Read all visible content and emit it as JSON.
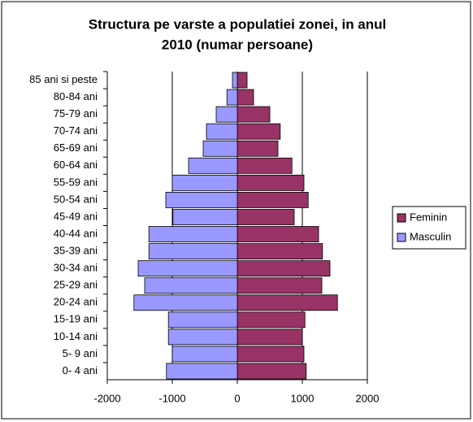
{
  "chart_data": {
    "type": "bar",
    "orientation": "horizontal",
    "stacked": "diverging",
    "title": [
      "Structura pe varste a populatiei zonei,  in anul",
      "2010 (numar persoane)"
    ],
    "categories": [
      "85 ani si peste",
      "80-84 ani",
      "75-79 ani",
      "70-74 ani",
      "65-69 ani",
      "60-64 ani",
      "55-59 ani",
      "50-54 ani",
      "45-49 ani",
      "40-44 ani",
      "35-39 ani",
      "30-34 ani",
      "25-29 ani",
      "20-24 ani",
      "15-19 ani",
      "10-14 ani",
      "5- 9 ani",
      "0- 4 ani"
    ],
    "series": [
      {
        "name": "Feminin",
        "color": "#993366",
        "values": [
          150,
          250,
          500,
          660,
          625,
          840,
          1025,
          1090,
          875,
          1250,
          1310,
          1425,
          1300,
          1540,
          1040,
          1000,
          1025,
          1060
        ]
      },
      {
        "name": "Masculin",
        "color": "#9999ff",
        "values": [
          -75,
          -160,
          -325,
          -475,
          -525,
          -750,
          -1000,
          -1100,
          -990,
          -1360,
          -1360,
          -1525,
          -1425,
          -1590,
          -1060,
          -1060,
          -1000,
          -1090
        ]
      }
    ],
    "xlim": [
      -2000,
      2000
    ],
    "xticks": [
      -2000,
      -1000,
      0,
      1000,
      2000
    ],
    "grid": true,
    "legend": "right"
  }
}
